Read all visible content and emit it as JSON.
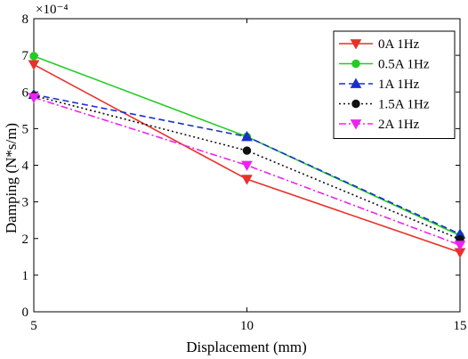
{
  "chart_data": {
    "type": "line",
    "title": "",
    "xlabel": "Displacement (mm)",
    "ylabel": "Damping (N*s/m)",
    "y_exponent_label": "×10⁻⁴",
    "x": [
      5,
      10,
      15
    ],
    "xticks": [
      "5",
      "10",
      "15"
    ],
    "xlim": [
      5,
      15
    ],
    "ylim": [
      0,
      8
    ],
    "yticks": [
      "0",
      "1",
      "2",
      "3",
      "4",
      "5",
      "6",
      "7",
      "8"
    ],
    "grid": false,
    "legend_position": "top-right",
    "series": [
      {
        "name": "0A 1Hz",
        "values": [
          6.75,
          3.62,
          1.62
        ],
        "color": "#e8312a",
        "line": "solid",
        "marker": "triangle-down"
      },
      {
        "name": "0.5A 1Hz",
        "values": [
          6.98,
          4.78,
          2.08
        ],
        "color": "#22cc22",
        "line": "solid",
        "marker": "circle"
      },
      {
        "name": "1A 1Hz",
        "values": [
          5.93,
          4.78,
          2.12
        ],
        "color": "#1b2fcf",
        "line": "dashed",
        "marker": "triangle-up"
      },
      {
        "name": "1.5A 1Hz",
        "values": [
          5.9,
          4.4,
          1.98
        ],
        "color": "#111111",
        "line": "dotted",
        "marker": "circle"
      },
      {
        "name": "2A 1Hz",
        "values": [
          5.85,
          4.0,
          1.82
        ],
        "color": "#ee22ee",
        "line": "dashdot",
        "marker": "triangle-down"
      }
    ]
  }
}
